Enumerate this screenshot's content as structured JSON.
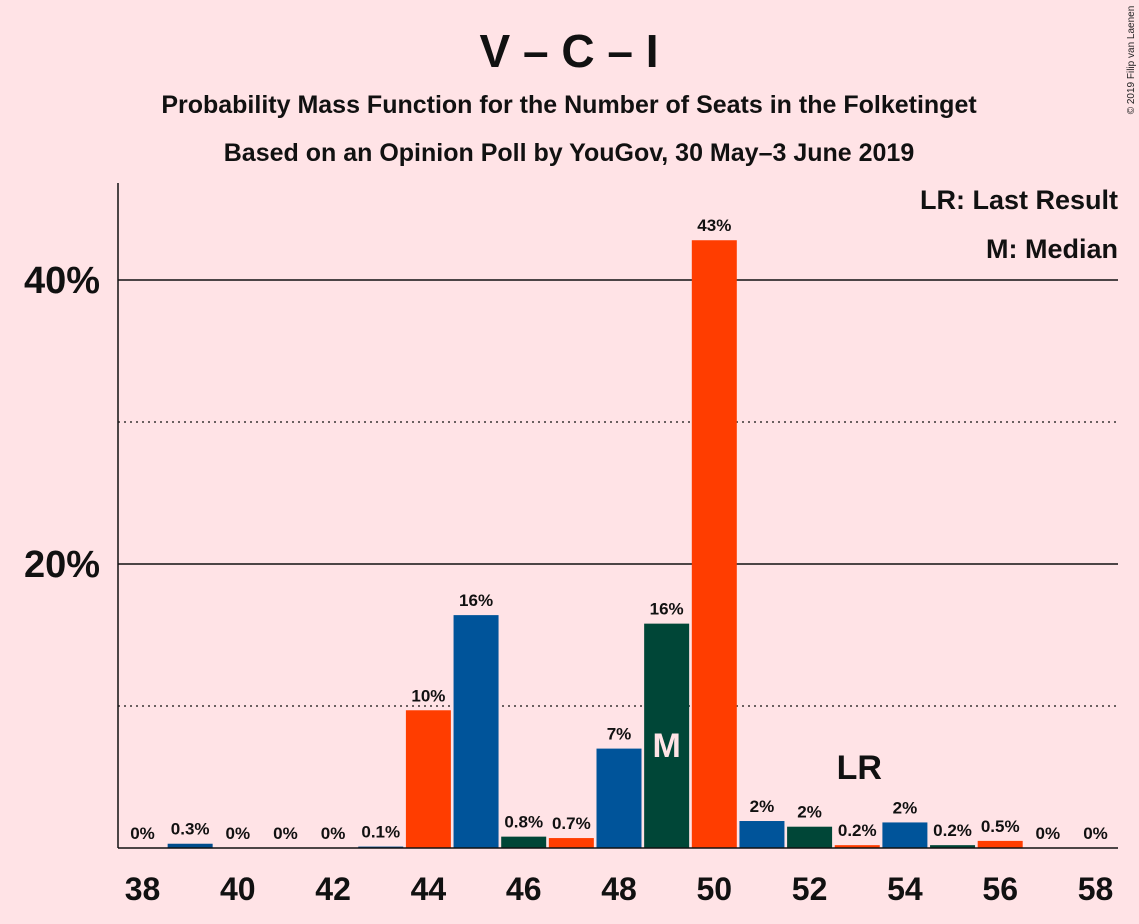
{
  "chart_data": {
    "type": "bar",
    "title": "V – C – I",
    "subtitle_1": "Probability Mass Function for the Number of Seats in the Folketinget",
    "subtitle_2": "Based on an Opinion Poll by YouGov, 30 May–3 June 2019",
    "copyright": "© 2019 Filip van Laenen",
    "x": [
      38,
      39,
      40,
      41,
      42,
      43,
      44,
      45,
      46,
      47,
      48,
      49,
      50,
      51,
      52,
      53,
      54,
      55,
      56,
      57,
      58
    ],
    "values": [
      0,
      0.3,
      0,
      0,
      0,
      0.1,
      9.7,
      16.4,
      0.8,
      0.7,
      7.0,
      15.8,
      42.8,
      1.9,
      1.5,
      0.2,
      1.8,
      0.2,
      0.5,
      0,
      0
    ],
    "value_labels": [
      "0%",
      "0.3%",
      "0%",
      "0%",
      "0%",
      "0.1%",
      "10%",
      "16%",
      "0.8%",
      "0.7%",
      "7%",
      "16%",
      "43%",
      "2%",
      "2%",
      "0.2%",
      "2%",
      "0.2%",
      "0.5%",
      "0%",
      "0%"
    ],
    "bar_colors": [
      "#004c8c",
      "#004c8c",
      "#004c8c",
      "#004c8c",
      "#004c8c",
      "#004c8c",
      "#ff3d00",
      "#00549a",
      "#004637",
      "#ff3d00",
      "#00549a",
      "#004637",
      "#ff3d00",
      "#00549a",
      "#004637",
      "#ff3d00",
      "#00549a",
      "#004637",
      "#ff3d00",
      "#00549a",
      "#004637"
    ],
    "x_tick_labels": [
      "38",
      "40",
      "42",
      "44",
      "46",
      "48",
      "50",
      "52",
      "54",
      "56",
      "58"
    ],
    "y_tick_labels": [
      "20%",
      "40%"
    ],
    "ylim": [
      0,
      46.5
    ],
    "grid_major": [
      20,
      40
    ],
    "grid_minor": [
      10,
      30
    ],
    "legend": {
      "placement": "top-right",
      "items": [
        "LR: Last Result",
        "M: Median"
      ]
    },
    "markers": {
      "median": {
        "x": 49,
        "label": "M",
        "color": "#ffe3e6"
      },
      "last_result": {
        "x": 53,
        "label": "LR",
        "color": "#111111"
      }
    }
  }
}
